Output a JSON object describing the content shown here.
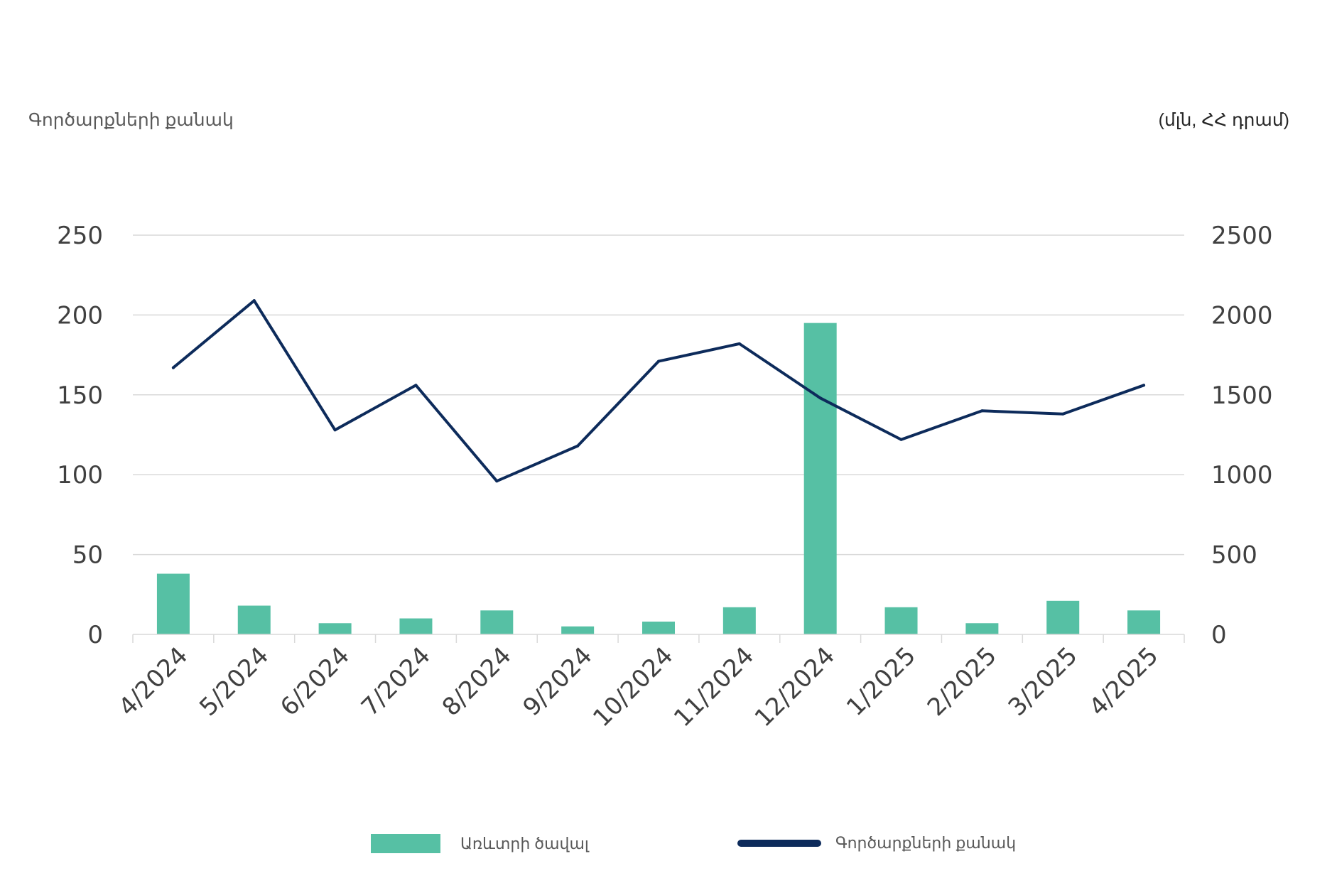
{
  "chart_data": {
    "type": "bar+line",
    "title": "",
    "categories": [
      "4/2024",
      "5/2024",
      "6/2024",
      "7/2024",
      "8/2024",
      "9/2024",
      "10/2024",
      "11/2024",
      "12/2024",
      "1/2025",
      "2/2025",
      "3/2025",
      "4/2025"
    ],
    "y_left": {
      "label": "Գործարքների քանակ",
      "range": [
        0,
        250
      ],
      "ticks": [
        0,
        50,
        100,
        150,
        200,
        250
      ]
    },
    "y_right": {
      "label": "(մլն, ՀՀ դրամ)",
      "range": [
        0,
        2500
      ],
      "ticks": [
        0,
        500,
        1000,
        1500,
        2000,
        2500
      ]
    },
    "grid": true,
    "legend_position": "bottom",
    "series": [
      {
        "name": "Առևտրի ծավալ",
        "kind": "bar",
        "axis": "left",
        "color": "#56C0A4",
        "values": [
          38,
          18,
          7,
          10,
          15,
          5,
          8,
          17,
          195,
          17,
          7,
          21,
          15
        ]
      },
      {
        "name": "Գործարքների քանակ",
        "kind": "line",
        "axis": "right",
        "color": "#0D2B5B",
        "values": [
          1670,
          2090,
          1280,
          1560,
          960,
          1180,
          1710,
          1820,
          1480,
          1220,
          1400,
          1380,
          1560
        ]
      }
    ]
  }
}
